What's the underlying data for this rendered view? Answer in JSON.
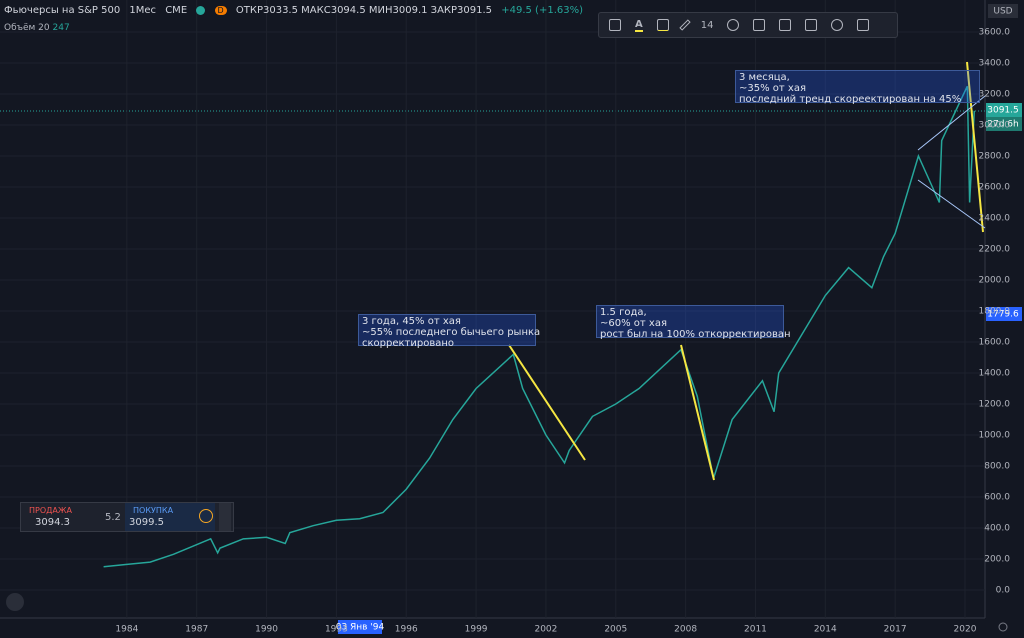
{
  "header": {
    "symbol": "Фьючерсы на S&P 500",
    "interval": "1Мес",
    "exchange": "CME",
    "badge": "D",
    "ohlc": "ОТКР3033.5 МАКС3094.5 МИН3009.1 ЗАКР3091.5",
    "change": "+49.5 (+1.63%)",
    "volume_label": "Объём 20",
    "volume_value": "247"
  },
  "toolbar": {
    "font_size": "14"
  },
  "trade": {
    "sell_label": "ПРОДАЖА",
    "sell_price": "3094.3",
    "spread": "5.2",
    "buy_label": "ПОКУПКА",
    "buy_price": "3099.5"
  },
  "annotations": [
    "3 года, 45% от хая\n~55% последнего бычьего рынка\nскорректировано",
    "1.5 года,\n~60% от хая\nрост был на 100% откорректирован",
    "3 месяца,\n~35% от хая\nпоследний тренд скореектирован на 45%"
  ],
  "price_scale": {
    "currency": "USD",
    "last_price": "3091.5",
    "countdown": "27d 6h",
    "crosshair_price": "1779.6"
  },
  "time_scale": {
    "crosshair_date": "03 Янв '94"
  },
  "chart_data": {
    "type": "line",
    "color": "#26a69a",
    "grid": true,
    "x": [
      1983.0,
      1984.0,
      1985.0,
      1986.0,
      1987.6,
      1987.9,
      1988.0,
      1989.0,
      1990.0,
      1990.8,
      1991.0,
      1992.0,
      1993.0,
      1994.0,
      1995.0,
      1996.0,
      1997.0,
      1998.0,
      1999.0,
      2000.6,
      2001.0,
      2002.0,
      2002.8,
      2003.0,
      2004.0,
      2005.0,
      2006.0,
      2007.8,
      2008.5,
      2009.2,
      2010.0,
      2011.3,
      2011.8,
      2012.0,
      2013.0,
      2014.0,
      2015.0,
      2016.0,
      2016.5,
      2017.0,
      2018.0,
      2018.9,
      2019.0,
      2020.1,
      2020.2,
      2020.4
    ],
    "values": [
      150,
      165,
      180,
      230,
      330,
      240,
      270,
      330,
      340,
      300,
      370,
      415,
      450,
      460,
      500,
      650,
      850,
      1100,
      1300,
      1520,
      1300,
      1000,
      820,
      900,
      1120,
      1200,
      1300,
      1550,
      1250,
      720,
      1100,
      1350,
      1150,
      1400,
      1650,
      1900,
      2080,
      1950,
      2150,
      2300,
      2800,
      2500,
      2900,
      3250,
      2500,
      3091.5
    ],
    "xlim": [
      1978.55,
      2020.86
    ],
    "xticks": [
      1984,
      1987,
      1990,
      1993,
      1996,
      1999,
      2002,
      2005,
      2008,
      2011,
      2014,
      2017,
      2020
    ],
    "ylim": [
      0,
      3600
    ],
    "yticks": [
      {
        "value": 0,
        "label": "0.0"
      },
      {
        "value": 200,
        "label": "200.0"
      },
      {
        "value": 400,
        "label": "400.0"
      },
      {
        "value": 600,
        "label": "600.0"
      },
      {
        "value": 800,
        "label": "800.0"
      },
      {
        "value": 1000,
        "label": "1000.0"
      },
      {
        "value": 1200,
        "label": "1200.0"
      },
      {
        "value": 1400,
        "label": "1400.0"
      },
      {
        "value": 1600,
        "label": "1600.0"
      },
      {
        "value": 1800,
        "label": "1800.0"
      },
      {
        "value": 2000,
        "label": "2000.0"
      },
      {
        "value": 2200,
        "label": "2200.0"
      },
      {
        "value": 2400,
        "label": "2400.0"
      },
      {
        "value": 2600,
        "label": "2600.0"
      },
      {
        "value": 2800,
        "label": "2800.0"
      },
      {
        "value": 3000,
        "label": "3000.0"
      },
      {
        "value": 3200,
        "label": "3200.0"
      },
      {
        "value": 3400,
        "label": "3400.0"
      },
      {
        "value": 3600,
        "label": "3600.0"
      }
    ]
  }
}
